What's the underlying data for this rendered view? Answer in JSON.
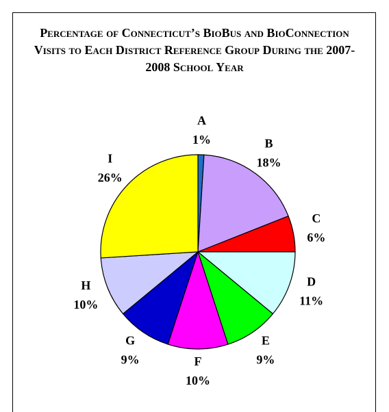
{
  "chart_data": {
    "type": "pie",
    "title": "Percentage of Connecticut’s BioBus and BioConnection Visits to Each District Reference Group During the 2007-2008 School Year",
    "categories": [
      "A",
      "B",
      "C",
      "D",
      "E",
      "F",
      "G",
      "H",
      "I"
    ],
    "values": [
      1,
      18,
      6,
      11,
      9,
      10,
      9,
      10,
      26
    ],
    "value_labels": [
      "1%",
      "18%",
      "6%",
      "11%",
      "9%",
      "10%",
      "9%",
      "10%",
      "26%"
    ],
    "colors": [
      "#1f6fc5",
      "#c89dfc",
      "#ff0000",
      "#ccffff",
      "#00ff00",
      "#ff00ff",
      "#0000cc",
      "#ccccff",
      "#ffff00"
    ]
  }
}
